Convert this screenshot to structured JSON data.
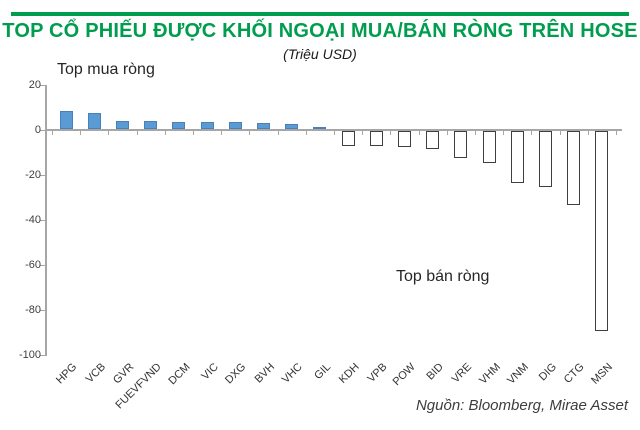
{
  "header": {
    "title": "TOP CỔ PHIẾU ĐƯỢC KHỐI NGOẠI MUA/BÁN RÒNG TRÊN HOSE",
    "subtitle": "(Triệu USD)"
  },
  "annotations": {
    "buy_label": "Top mua ròng",
    "sell_label": "Top bán ròng"
  },
  "footer": {
    "source": "Nguồn: Bloomberg, Mirae Asset"
  },
  "colors": {
    "accent_green": "#009D4E",
    "bar_buy_fill": "#5B9BD5",
    "bar_sell_outline": "#3F3F3F",
    "axis_gray": "#A6A6A6"
  },
  "chart_data": {
    "type": "bar",
    "title": "TOP CỔ PHIẾU ĐƯỢC KHỐI NGOẠI MUA/BÁN RÒNG TRÊN HOSE",
    "subtitle": "(Triệu USD)",
    "xlabel": "",
    "ylabel": "",
    "categories": [
      "HPG",
      "VCB",
      "GVR",
      "FUEVFVND",
      "DCM",
      "VIC",
      "DXG",
      "BVH",
      "VHC",
      "GIL",
      "KDH",
      "VPB",
      "POW",
      "BID",
      "VRE",
      "VHM",
      "VNM",
      "DIG",
      "CTG",
      "MSN"
    ],
    "values": [
      8.2,
      7.0,
      3.6,
      3.5,
      3.3,
      3.2,
      3.2,
      2.7,
      2.2,
      1.0,
      -6.5,
      -6.5,
      -7.0,
      -7.8,
      -12.0,
      -14.3,
      -23.0,
      -25.0,
      -33.0,
      -89.0
    ],
    "ylim": [
      -100,
      20
    ],
    "yticks": [
      20,
      0,
      -20,
      -40,
      -60,
      -80,
      -100
    ],
    "grid": false,
    "legend": null,
    "style_hint": {
      "positive_bars": "solid blue fill",
      "negative_bars": "white fill with dark outline",
      "x_labels_rotation_deg": -45
    }
  }
}
